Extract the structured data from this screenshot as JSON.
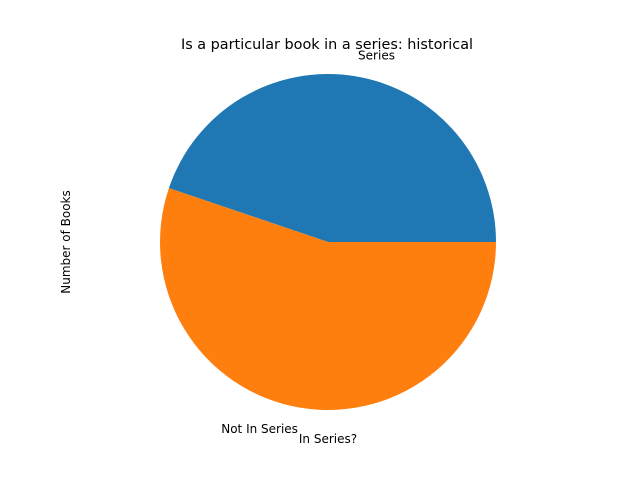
{
  "chart_data": {
    "type": "pie",
    "title": "Is a particular book in a series: historical",
    "xlabel": "In Series?",
    "ylabel": "Number of Books",
    "categories": [
      "Series",
      "Not In Series"
    ],
    "values": [
      44.8,
      55.2
    ],
    "colors": [
      "#1f77b4",
      "#ff7f0e"
    ],
    "start_angle_deg": 0,
    "direction": "counterclockwise",
    "legend": "none",
    "grid": false
  }
}
